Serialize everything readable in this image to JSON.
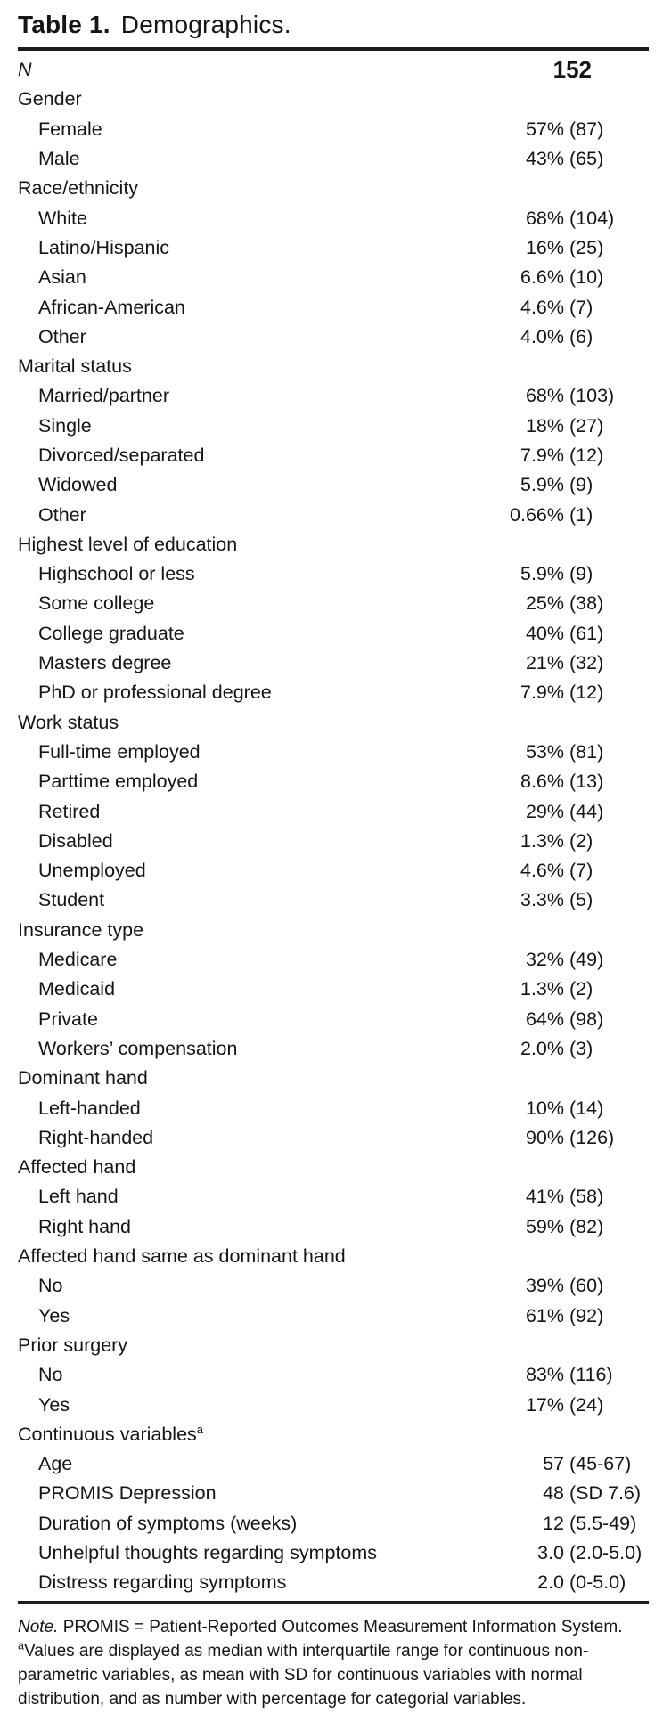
{
  "theme": {
    "background": "#ffffff",
    "text": "#151515",
    "rule": "#1c1c1c"
  },
  "title": {
    "number": "Table 1.",
    "caption": "Demographics."
  },
  "header": {
    "label": "N",
    "value": "152"
  },
  "sections": [
    {
      "label": "Gender",
      "rows": [
        {
          "label": "Female",
          "num": "57%",
          "paren": "(87)"
        },
        {
          "label": "Male",
          "num": "43%",
          "paren": "(65)"
        }
      ]
    },
    {
      "label": "Race/ethnicity",
      "rows": [
        {
          "label": "White",
          "num": "68%",
          "paren": "(104)"
        },
        {
          "label": "Latino/Hispanic",
          "num": "16%",
          "paren": "(25)"
        },
        {
          "label": "Asian",
          "num": "6.6%",
          "paren": "(10)"
        },
        {
          "label": "African-American",
          "num": "4.6%",
          "paren": "(7)"
        },
        {
          "label": "Other",
          "num": "4.0%",
          "paren": "(6)"
        }
      ]
    },
    {
      "label": "Marital status",
      "rows": [
        {
          "label": "Married/partner",
          "num": "68%",
          "paren": "(103)"
        },
        {
          "label": "Single",
          "num": "18%",
          "paren": "(27)"
        },
        {
          "label": "Divorced/separated",
          "num": "7.9%",
          "paren": "(12)"
        },
        {
          "label": "Widowed",
          "num": "5.9%",
          "paren": "(9)"
        },
        {
          "label": "Other",
          "num": "0.66%",
          "paren": "(1)"
        }
      ]
    },
    {
      "label": "Highest level of education",
      "rows": [
        {
          "label": "Highschool or less",
          "num": "5.9%",
          "paren": "(9)"
        },
        {
          "label": "Some college",
          "num": "25%",
          "paren": "(38)"
        },
        {
          "label": "College graduate",
          "num": "40%",
          "paren": "(61)"
        },
        {
          "label": "Masters degree",
          "num": "21%",
          "paren": "(32)"
        },
        {
          "label": "PhD or professional degree",
          "num": "7.9%",
          "paren": "(12)"
        }
      ]
    },
    {
      "label": "Work status",
      "rows": [
        {
          "label": "Full-time employed",
          "num": "53%",
          "paren": "(81)"
        },
        {
          "label": "Parttime employed",
          "num": "8.6%",
          "paren": "(13)"
        },
        {
          "label": "Retired",
          "num": "29%",
          "paren": "(44)"
        },
        {
          "label": "Disabled",
          "num": "1.3%",
          "paren": "(2)"
        },
        {
          "label": "Unemployed",
          "num": "4.6%",
          "paren": "(7)"
        },
        {
          "label": "Student",
          "num": "3.3%",
          "paren": "(5)"
        }
      ]
    },
    {
      "label": "Insurance type",
      "rows": [
        {
          "label": "Medicare",
          "num": "32%",
          "paren": "(49)"
        },
        {
          "label": "Medicaid",
          "num": "1.3%",
          "paren": "(2)"
        },
        {
          "label": "Private",
          "num": "64%",
          "paren": "(98)"
        },
        {
          "label": "Workers’ compensation",
          "num": "2.0%",
          "paren": "(3)"
        }
      ]
    },
    {
      "label": "Dominant hand",
      "rows": [
        {
          "label": "Left-handed",
          "num": "10%",
          "paren": "(14)"
        },
        {
          "label": "Right-handed",
          "num": "90%",
          "paren": "(126)"
        }
      ]
    },
    {
      "label": "Affected hand",
      "rows": [
        {
          "label": "Left hand",
          "num": "41%",
          "paren": "(58)"
        },
        {
          "label": "Right hand",
          "num": "59%",
          "paren": "(82)"
        }
      ]
    },
    {
      "label": "Affected hand same as dominant hand",
      "rows": [
        {
          "label": "No",
          "num": "39%",
          "paren": "(60)"
        },
        {
          "label": "Yes",
          "num": "61%",
          "paren": "(92)"
        }
      ]
    },
    {
      "label": "Prior surgery",
      "rows": [
        {
          "label": "No",
          "num": "83%",
          "paren": "(116)"
        },
        {
          "label": "Yes",
          "num": "17%",
          "paren": "(24)"
        }
      ]
    },
    {
      "label": "Continuous variables",
      "sup": "a",
      "rows": [
        {
          "label": "Age",
          "num": "57",
          "paren": "(45-67)"
        },
        {
          "label": "PROMIS Depression",
          "num": "48",
          "paren": "(SD 7.6)"
        },
        {
          "label": "Duration of symptoms (weeks)",
          "num": "12",
          "paren": "(5.5-49)"
        },
        {
          "label": "Unhelpful thoughts regarding symptoms",
          "num": "3.0",
          "paren": "(2.0-5.0)"
        },
        {
          "label": "Distress regarding symptoms",
          "num": "2.0",
          "paren": "(0-5.0)"
        }
      ]
    }
  ],
  "footnote": {
    "note_label": "Note.",
    "note_text": "PROMIS = Patient-Reported Outcomes Measurement Information System.",
    "sup": "a",
    "sup_text": "Values are displayed as median with interquartile range for continuous non-parametric variables, as mean with SD for continuous variables with normal distribution, and as number with percentage for categorial variables."
  }
}
